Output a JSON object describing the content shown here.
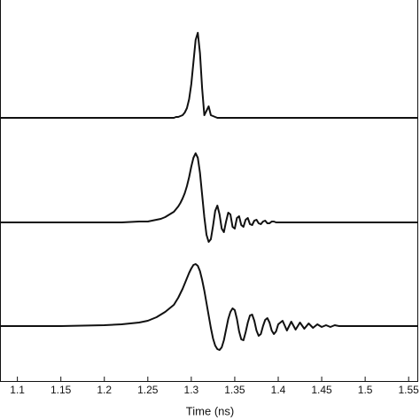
{
  "chart_data": {
    "type": "line",
    "x_label": "Time (ns)",
    "x": [
      1.08,
      1.15,
      1.2,
      1.22,
      1.24,
      1.25,
      1.255,
      1.26,
      1.265,
      1.27,
      1.275,
      1.28,
      1.2825,
      1.285,
      1.2875,
      1.29,
      1.2925,
      1.295,
      1.2975,
      1.3,
      1.3025,
      1.305,
      1.3075,
      1.31,
      1.3125,
      1.315,
      1.3175,
      1.32,
      1.3225,
      1.325,
      1.3275,
      1.33,
      1.3325,
      1.335,
      1.3375,
      1.34,
      1.3425,
      1.345,
      1.3475,
      1.35,
      1.3525,
      1.355,
      1.3575,
      1.36,
      1.3625,
      1.365,
      1.3675,
      1.37,
      1.3725,
      1.375,
      1.3775,
      1.38,
      1.3825,
      1.385,
      1.3875,
      1.39,
      1.3925,
      1.395,
      1.3975,
      1.4,
      1.405,
      1.41,
      1.415,
      1.42,
      1.425,
      1.43,
      1.435,
      1.44,
      1.445,
      1.45,
      1.455,
      1.46,
      1.465,
      1.47,
      1.475,
      1.48,
      1.485,
      1.49,
      1.495,
      1.5,
      1.56
    ],
    "series": [
      {
        "color": "#111111",
        "values": [
          2.97,
          2.97,
          2.97,
          2.97,
          2.97,
          2.97,
          2.97,
          2.97,
          2.97,
          2.97,
          2.97,
          2.97,
          2.98,
          2.98,
          2.99,
          3.0,
          3.03,
          3.08,
          3.18,
          3.35,
          3.6,
          3.85,
          3.93,
          3.7,
          3.3,
          3.0,
          3.05,
          3.1,
          3.0,
          2.99,
          2.98,
          2.97,
          2.97,
          2.97,
          2.97,
          2.97,
          2.97,
          2.97,
          2.97,
          2.97,
          2.97,
          2.97,
          2.97,
          2.97,
          2.97,
          2.97,
          2.97,
          2.97,
          2.97,
          2.97,
          2.97,
          2.97,
          2.97,
          2.97,
          2.97,
          2.97,
          2.97,
          2.97,
          2.97,
          2.97,
          2.97,
          2.97,
          2.97,
          2.97,
          2.97,
          2.97,
          2.97,
          2.97,
          2.97,
          2.97,
          2.97,
          2.97,
          2.97,
          2.97,
          2.97,
          2.97,
          2.97,
          2.97,
          2.97,
          2.97,
          2.97
        ]
      },
      {
        "color": "#111111",
        "values": [
          1.79,
          1.79,
          1.79,
          1.79,
          1.8,
          1.8,
          1.81,
          1.82,
          1.83,
          1.85,
          1.88,
          1.91,
          1.94,
          1.97,
          2.01,
          2.06,
          2.12,
          2.2,
          2.3,
          2.42,
          2.52,
          2.57,
          2.52,
          2.35,
          2.1,
          1.85,
          1.65,
          1.57,
          1.6,
          1.75,
          1.92,
          1.98,
          1.88,
          1.72,
          1.68,
          1.8,
          1.9,
          1.88,
          1.74,
          1.72,
          1.84,
          1.86,
          1.76,
          1.74,
          1.82,
          1.84,
          1.77,
          1.76,
          1.81,
          1.82,
          1.78,
          1.77,
          1.8,
          1.81,
          1.78,
          1.78,
          1.8,
          1.8,
          1.79,
          1.79,
          1.79,
          1.79,
          1.79,
          1.79,
          1.79,
          1.79,
          1.79,
          1.79,
          1.79,
          1.79,
          1.79,
          1.79,
          1.79,
          1.79,
          1.79,
          1.79,
          1.79,
          1.79,
          1.79,
          1.79,
          1.79
        ]
      },
      {
        "color": "#111111",
        "values": [
          0.62,
          0.62,
          0.63,
          0.64,
          0.66,
          0.68,
          0.7,
          0.72,
          0.75,
          0.78,
          0.82,
          0.86,
          0.9,
          0.94,
          0.99,
          1.04,
          1.1,
          1.16,
          1.22,
          1.27,
          1.31,
          1.32,
          1.3,
          1.24,
          1.14,
          1.02,
          0.88,
          0.74,
          0.6,
          0.48,
          0.4,
          0.36,
          0.35,
          0.38,
          0.46,
          0.58,
          0.7,
          0.78,
          0.82,
          0.8,
          0.7,
          0.56,
          0.47,
          0.46,
          0.55,
          0.66,
          0.74,
          0.75,
          0.68,
          0.57,
          0.51,
          0.53,
          0.62,
          0.69,
          0.71,
          0.66,
          0.57,
          0.53,
          0.56,
          0.64,
          0.68,
          0.57,
          0.67,
          0.58,
          0.66,
          0.59,
          0.65,
          0.6,
          0.64,
          0.61,
          0.63,
          0.61,
          0.63,
          0.62,
          0.62,
          0.62,
          0.62,
          0.62,
          0.62,
          0.62,
          0.62
        ]
      }
    ],
    "xlim": [
      1.08,
      1.56
    ],
    "xticks": [
      1.1,
      1.15,
      1.2,
      1.25,
      1.3,
      1.35,
      1.4,
      1.45,
      1.5,
      1.55
    ],
    "ylim": [
      0,
      4.3
    ]
  }
}
